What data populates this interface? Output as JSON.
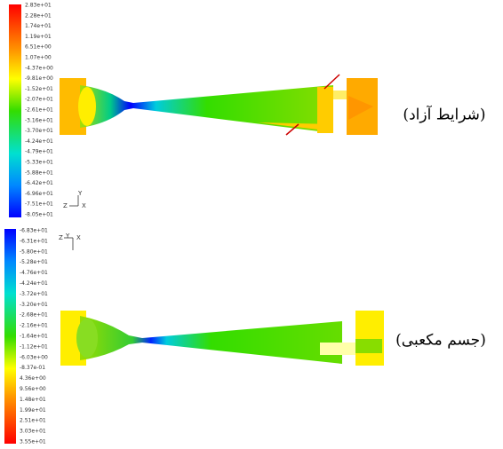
{
  "panels": [
    {
      "caption": "(شرایط آزاد)",
      "colorbar_labels": [
        "2.83e+01",
        "2.28e+01",
        "1.74e+01",
        "1.19e+01",
        "6.51e+00",
        "1.07e+00",
        "-4.37e+00",
        "-9.81e+00",
        "-1.52e+01",
        "-2.07e+01",
        "-2.61e+01",
        "-3.16e+01",
        "-3.70e+01",
        "-4.24e+01",
        "-4.79e+01",
        "-5.33e+01",
        "-5.88e+01",
        "-6.42e+01",
        "-6.96e+01",
        "-7.51e+01",
        "-8.05e+01"
      ],
      "axes": [
        "Y",
        "Z",
        "X"
      ]
    },
    {
      "caption": "(جسم مکعبی)",
      "colorbar_labels": [
        "-6.83e+01",
        "-6.31e+01",
        "-5.80e+01",
        "-5.28e+01",
        "-4.76e+01",
        "-4.24e+01",
        "-3.72e+01",
        "-3.20e+01",
        "-2.68e+01",
        "-2.16e+01",
        "-1.64e+01",
        "-1.12e+01",
        "-6.03e+00",
        "-8.37e-01",
        "4.36e+00",
        "9.56e+00",
        "1.48e+01",
        "1.99e+01",
        "2.51e+01",
        "3.03e+01",
        "3.55e+01"
      ],
      "axes": [
        "Y",
        "Z",
        "X"
      ]
    }
  ]
}
